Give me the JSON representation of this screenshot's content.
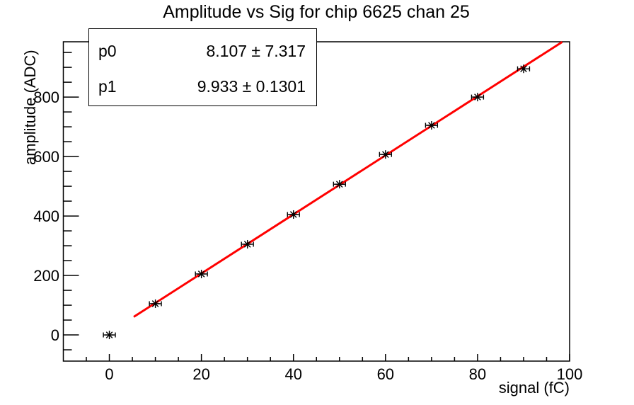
{
  "chart_data": {
    "type": "scatter",
    "title": "Amplitude vs Sig for chip 6625 chan 25",
    "xlabel": "signal (fC)",
    "ylabel": "amplitude (ADC)",
    "xlim": [
      -10,
      100
    ],
    "ylim": [
      -88,
      986
    ],
    "x_major_ticks": [
      0,
      20,
      40,
      60,
      80,
      100
    ],
    "x_minor_step": 5,
    "y_major_ticks": [
      0,
      200,
      400,
      600,
      800
    ],
    "y_minor_step": 50,
    "grid": false,
    "legend": "none",
    "points": {
      "x": [
        0,
        10,
        20,
        30,
        40,
        50,
        60,
        70,
        80,
        90
      ],
      "y": [
        0,
        105,
        205,
        305,
        405,
        507,
        607,
        705,
        800,
        895
      ],
      "xerr": 1.3,
      "marker": "asterisk",
      "color": "#000000"
    },
    "fit": {
      "label_p0": "p0",
      "label_p1": "p1",
      "p0": 8.107,
      "p1": 9.933,
      "x_start": 5.3,
      "x_end": 98.4,
      "color": "#ff0000",
      "line_width": 3
    },
    "stats": {
      "rows": [
        {
          "name": "p0",
          "value": "8.107 ± 7.317"
        },
        {
          "name": "p1",
          "value": "9.933 ± 0.1301"
        }
      ]
    }
  }
}
